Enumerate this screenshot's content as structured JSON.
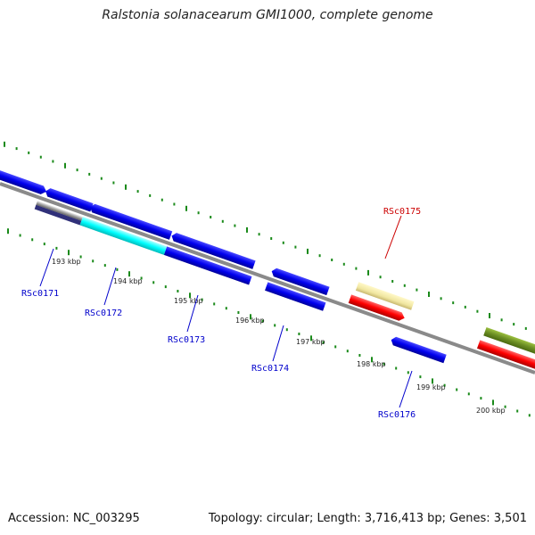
{
  "title": "Ralstonia solanacearum GMI1000, complete genome",
  "footer": {
    "accession": "Accession: NC_003295",
    "summary": "Topology: circular; Length: 3,716,413 bp; Genes: 3,501"
  },
  "scale_labels": [
    "193 kbp",
    "194 kbp",
    "195 kbp",
    "196 kbp",
    "197 kbp",
    "198 kbp",
    "199 kbp",
    "200 kbp"
  ],
  "gene_labels": [
    {
      "id": "RSc0171",
      "color": "#0000cc"
    },
    {
      "id": "RSc0172",
      "color": "#0000cc"
    },
    {
      "id": "RSc0173",
      "color": "#0000cc"
    },
    {
      "id": "RSc0174",
      "color": "#0000cc"
    },
    {
      "id": "RSc0175",
      "color": "#cc0000"
    },
    {
      "id": "RSc0176",
      "color": "#0000cc"
    }
  ],
  "colors": {
    "backbone": "#8a8a8a",
    "gene_blue": "#0000ee",
    "gene_cyan": "#00ffff",
    "gene_red": "#ff0000",
    "gene_yellow": "#f0e6a0",
    "gene_olive": "#6b8e23",
    "ticks": "#1a8a1a"
  }
}
